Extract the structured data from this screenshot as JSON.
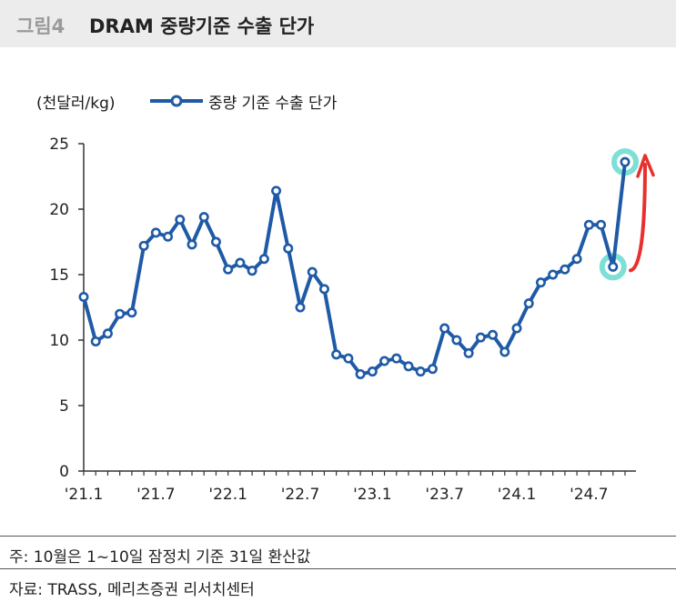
{
  "header": {
    "figure_label": "그림4",
    "title": "DRAM 중량기준 수출 단가"
  },
  "unit_label": "(천달러/kg)",
  "legend_label": "중량 기준 수출 단가",
  "footer": {
    "note": "주: 10월은 1~10일 잠정치 기준 31일 환산값",
    "source": "자료: TRASS, 메리츠증권 리서치센터"
  },
  "colors": {
    "line": "#1f5aa6",
    "marker_fill": "#ffffff",
    "highlight": "#6fdcd2",
    "arrow": "#e8302e"
  },
  "chart_data": {
    "type": "line",
    "title": "DRAM 중량기준 수출 단가",
    "ylabel": "(천달러/kg)",
    "ylim": [
      0,
      25
    ],
    "yticks": [
      0,
      5,
      10,
      15,
      20,
      25
    ],
    "xtick_labels": [
      "'21.1",
      "'21.7",
      "'22.1",
      "'22.7",
      "'23.1",
      "'23.7",
      "'24.1",
      "'24.7"
    ],
    "grid": false,
    "legend_position": "top-left",
    "series": [
      {
        "name": "중량 기준 수출 단가",
        "x": [
          "'21.1",
          "'21.2",
          "'21.3",
          "'21.4",
          "'21.5",
          "'21.6",
          "'21.7",
          "'21.8",
          "'21.9",
          "'21.10",
          "'21.11",
          "'21.12",
          "'22.1",
          "'22.2",
          "'22.3",
          "'22.4",
          "'22.5",
          "'22.6",
          "'22.7",
          "'22.8",
          "'22.9",
          "'22.10",
          "'22.11",
          "'22.12",
          "'23.1",
          "'23.2",
          "'23.3",
          "'23.4",
          "'23.5",
          "'23.6",
          "'23.7",
          "'23.8",
          "'23.9",
          "'23.10",
          "'23.11",
          "'23.12",
          "'24.1",
          "'24.2",
          "'24.3",
          "'24.4",
          "'24.5",
          "'24.6",
          "'24.7",
          "'24.8",
          "'24.9",
          "'24.10"
        ],
        "values": [
          13.3,
          9.9,
          10.5,
          12.0,
          12.1,
          17.2,
          18.2,
          17.9,
          19.2,
          17.3,
          19.4,
          17.5,
          15.4,
          15.9,
          15.3,
          16.2,
          21.4,
          17.0,
          12.5,
          15.2,
          13.9,
          8.9,
          8.6,
          7.4,
          7.6,
          8.4,
          8.6,
          8.0,
          7.6,
          7.8,
          10.9,
          10.0,
          9.0,
          10.2,
          10.4,
          9.1,
          10.9,
          12.8,
          14.4,
          15.0,
          15.4,
          16.2,
          18.8,
          18.8,
          15.6,
          23.6
        ]
      }
    ]
  }
}
